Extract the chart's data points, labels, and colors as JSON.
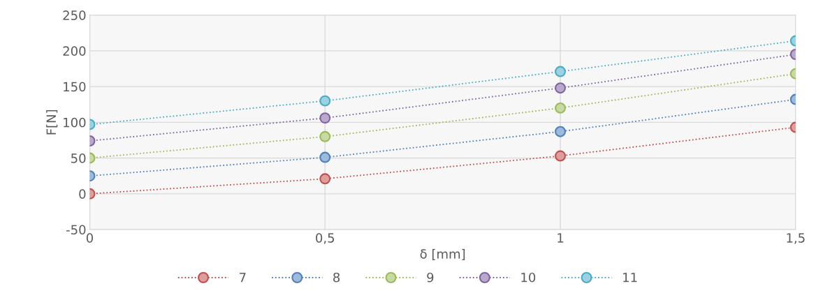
{
  "chart_data": {
    "type": "line",
    "xlabel": "δ [mm]",
    "ylabel": "F[N]",
    "x": [
      0,
      0.5,
      1,
      1.5
    ],
    "xlim": [
      0,
      1.5
    ],
    "xticks": [
      0,
      {
        "value": 0.5,
        "label": "0,5"
      },
      1,
      {
        "value": 1.5,
        "label": "1,5"
      }
    ],
    "ylim": [
      -50,
      250
    ],
    "yticks": [
      -50,
      0,
      50,
      100,
      150,
      200,
      250
    ],
    "grid": true,
    "legend": "bottom",
    "marker": "circle",
    "line_style": "dotted",
    "series": [
      {
        "name": "7",
        "color": "#c0504d",
        "values": [
          0,
          21,
          53,
          93
        ]
      },
      {
        "name": "8",
        "color": "#4f81bd",
        "values": [
          25,
          51,
          87,
          132
        ]
      },
      {
        "name": "9",
        "color": "#9bbb59",
        "values": [
          50,
          80,
          120,
          168
        ]
      },
      {
        "name": "10",
        "color": "#8064a2",
        "values": [
          74,
          106,
          148,
          195
        ]
      },
      {
        "name": "11",
        "color": "#4bacc6",
        "values": [
          97,
          130,
          171,
          214
        ]
      }
    ]
  }
}
